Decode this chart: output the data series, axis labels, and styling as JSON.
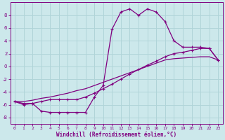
{
  "xlabel": "Windchill (Refroidissement éolien,°C)",
  "bg_color": "#cce8eb",
  "grid_color": "#b0d4d8",
  "line_color": "#800080",
  "xlim": [
    -0.5,
    23.5
  ],
  "ylim": [
    -9,
    10
  ],
  "yticks": [
    -8,
    -6,
    -4,
    -2,
    0,
    2,
    4,
    6,
    8
  ],
  "xticks": [
    0,
    1,
    2,
    3,
    4,
    5,
    6,
    7,
    8,
    9,
    10,
    11,
    12,
    13,
    14,
    15,
    16,
    17,
    18,
    19,
    20,
    21,
    22,
    23
  ],
  "line1_x": [
    0,
    1,
    2,
    3,
    4,
    5,
    6,
    7,
    8,
    9,
    10,
    11,
    12,
    13,
    14,
    15,
    16,
    17,
    18,
    19,
    20,
    21,
    22,
    23
  ],
  "line1_y": [
    -5.5,
    -6.0,
    -5.8,
    -7.0,
    -7.2,
    -7.2,
    -7.2,
    -7.2,
    -7.2,
    -4.8,
    -3.0,
    5.8,
    8.5,
    9.0,
    8.0,
    9.0,
    8.5,
    7.0,
    4.0,
    3.0,
    3.0,
    3.0,
    2.8,
    1.0
  ],
  "line2_x": [
    0,
    1,
    2,
    3,
    4,
    5,
    6,
    7,
    8,
    9,
    10,
    11,
    12,
    13,
    14,
    15,
    16,
    17,
    18,
    19,
    20,
    21,
    22,
    23
  ],
  "line2_y": [
    -5.5,
    -5.8,
    -5.8,
    -5.5,
    -5.2,
    -5.2,
    -5.2,
    -5.2,
    -4.8,
    -4.2,
    -3.5,
    -2.8,
    -2.0,
    -1.2,
    -0.5,
    0.2,
    0.8,
    1.5,
    2.0,
    2.2,
    2.5,
    2.8,
    2.8,
    1.0
  ],
  "line3_x": [
    0,
    1,
    2,
    3,
    4,
    5,
    6,
    7,
    8,
    9,
    10,
    11,
    12,
    13,
    14,
    15,
    16,
    17,
    18,
    19,
    20,
    21,
    22,
    23
  ],
  "line3_y": [
    -5.5,
    -5.5,
    -5.3,
    -5.0,
    -4.8,
    -4.5,
    -4.2,
    -3.8,
    -3.5,
    -3.0,
    -2.5,
    -2.0,
    -1.5,
    -1.0,
    -0.5,
    0.0,
    0.5,
    1.0,
    1.2,
    1.3,
    1.4,
    1.5,
    1.5,
    1.0
  ]
}
